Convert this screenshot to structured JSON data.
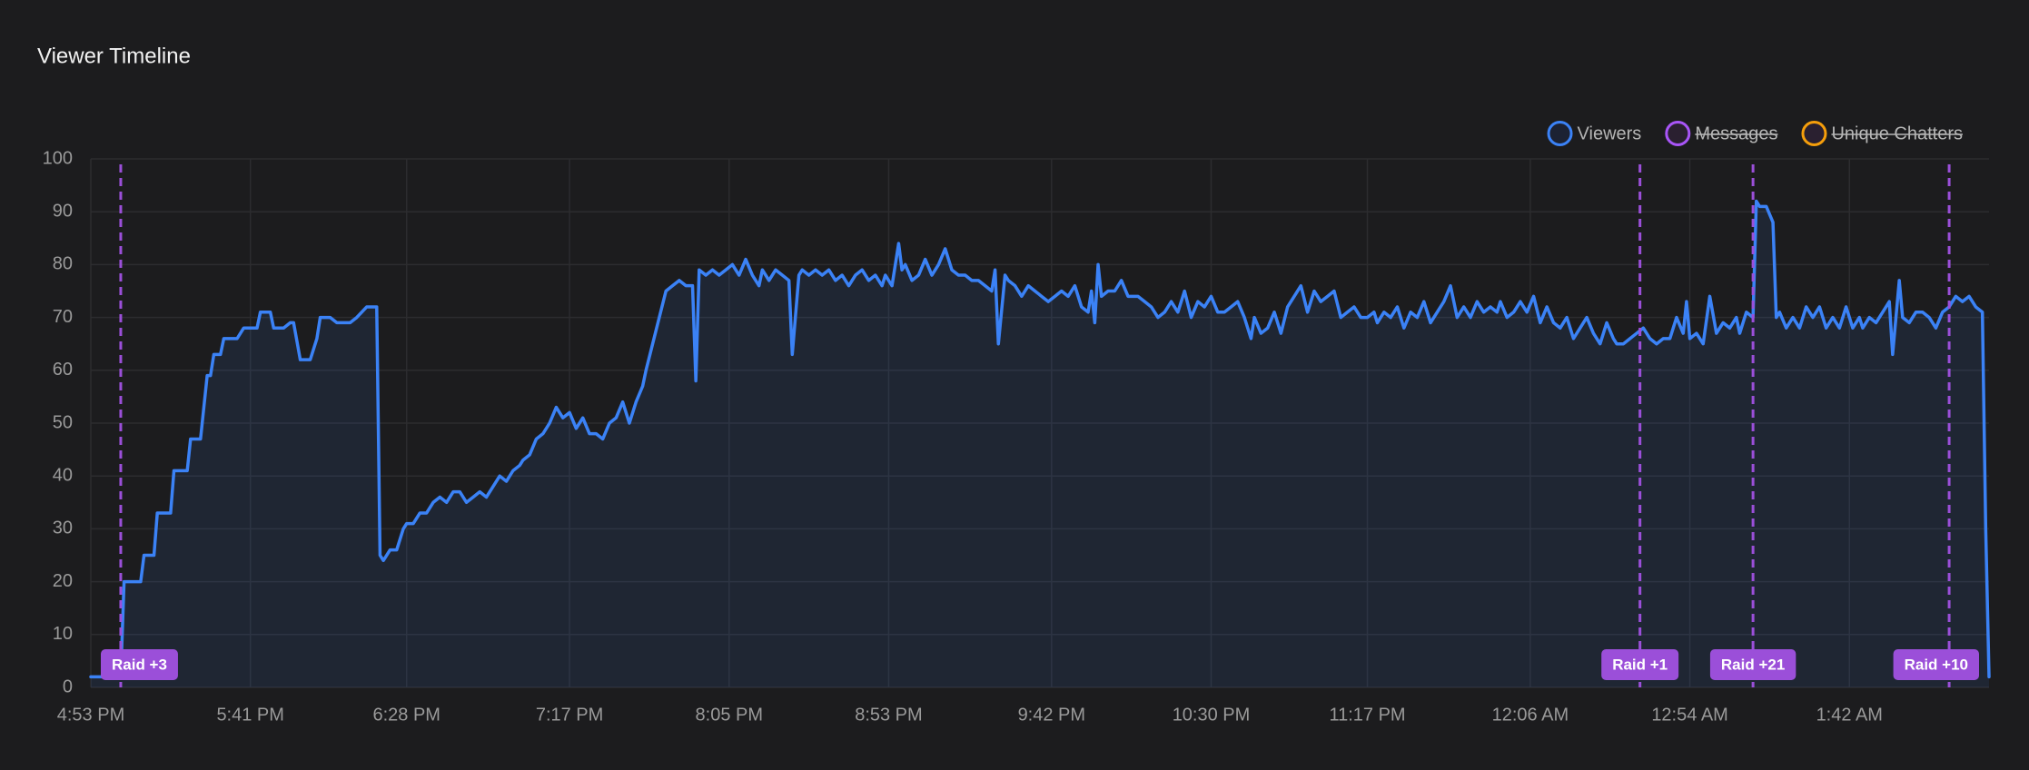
{
  "chart_data": {
    "type": "line",
    "title": "Viewer Timeline",
    "x": [
      1013,
      1016,
      1022,
      1023,
      1028,
      1029,
      1032,
      1033,
      1037,
      1038,
      1042,
      1043,
      1046,
      1048,
      1049,
      1050,
      1052,
      1053,
      1057,
      1059,
      1063,
      1064,
      1067,
      1068,
      1071,
      1073,
      1074,
      1076,
      1079,
      1081,
      1082,
      1085,
      1087,
      1091,
      1093,
      1096,
      1099,
      1100,
      1101,
      1103,
      1105,
      1107,
      1108,
      1110,
      1112,
      1114,
      1116,
      1118,
      1120,
      1122,
      1124,
      1126,
      1128,
      1130,
      1132,
      1134,
      1136,
      1138,
      1140,
      1142,
      1143,
      1145,
      1147,
      1149,
      1151,
      1153,
      1155,
      1157,
      1159,
      1161,
      1163,
      1165,
      1167,
      1169,
      1171,
      1173,
      1175,
      1177,
      1179,
      1180,
      1182,
      1184,
      1186,
      1188,
      1190,
      1192,
      1194,
      1195,
      1196,
      1198,
      1200,
      1202,
      1204,
      1206,
      1208,
      1210,
      1212,
      1214,
      1215,
      1217,
      1219,
      1221,
      1223,
      1224,
      1226,
      1227,
      1229,
      1231,
      1233,
      1235,
      1237,
      1239,
      1241,
      1243,
      1245,
      1247,
      1249,
      1251,
      1252,
      1254,
      1256,
      1257,
      1258,
      1260,
      1262,
      1264,
      1266,
      1268,
      1270,
      1272,
      1274,
      1276,
      1278,
      1280,
      1282,
      1284,
      1285,
      1286,
      1288,
      1289,
      1291,
      1293,
      1295,
      1297,
      1299,
      1301,
      1303,
      1305,
      1307,
      1309,
      1311,
      1313,
      1314,
      1315,
      1316,
      1317,
      1319,
      1321,
      1323,
      1325,
      1326,
      1328,
      1330,
      1332,
      1334,
      1336,
      1338,
      1340,
      1342,
      1344,
      1346,
      1348,
      1350,
      1352,
      1354,
      1356,
      1358,
      1360,
      1362,
      1363,
      1365,
      1367,
      1369,
      1371,
      1373,
      1375,
      1377,
      1379,
      1381,
      1383,
      1385,
      1387,
      1389,
      1391,
      1393,
      1395,
      1397,
      1399,
      1400,
      1402,
      1404,
      1406,
      1408,
      1410,
      1412,
      1414,
      1416,
      1418,
      1420,
      1422,
      1424,
      1426,
      1428,
      1430,
      1432,
      1434,
      1436,
      1437,
      1439,
      1441,
      1443,
      1445,
      1447,
      1449,
      1451,
      1453,
      1455,
      1457,
      1459,
      1461,
      1463,
      1465,
      1467,
      1469,
      1471,
      1472,
      1474,
      1476,
      1478,
      1480,
      1482,
      1484,
      1486,
      1488,
      1490,
      1492,
      1493,
      1494,
      1496,
      1498,
      1500,
      1502,
      1504,
      1506,
      1508,
      1509,
      1511,
      1513,
      1514,
      1515,
      1517,
      1519,
      1520,
      1521,
      1523,
      1525,
      1527,
      1529,
      1531,
      1533,
      1535,
      1537,
      1539,
      1541,
      1543,
      1545,
      1546,
      1548,
      1550,
      1552,
      1554,
      1555,
      1557,
      1558,
      1560,
      1562,
      1564,
      1566,
      1568,
      1570,
      1572,
      1574,
      1576,
      1578,
      1580,
      1582,
      1583,
      1584
    ],
    "series": [
      {
        "name": "Viewers",
        "color": "#3b82f6",
        "values": [
          2,
          2,
          2,
          20,
          20,
          25,
          25,
          33,
          33,
          41,
          41,
          47,
          47,
          59,
          59,
          63,
          63,
          66,
          66,
          68,
          68,
          71,
          71,
          68,
          68,
          69,
          69,
          62,
          62,
          66,
          70,
          70,
          69,
          69,
          70,
          72,
          72,
          25,
          24,
          26,
          26,
          30,
          31,
          31,
          33,
          33,
          35,
          36,
          35,
          37,
          37,
          35,
          36,
          37,
          36,
          38,
          40,
          39,
          41,
          42,
          43,
          44,
          47,
          48,
          50,
          53,
          51,
          52,
          49,
          51,
          48,
          48,
          47,
          50,
          51,
          54,
          50,
          54,
          57,
          60,
          65,
          70,
          75,
          76,
          77,
          76,
          76,
          58,
          79,
          78,
          79,
          78,
          79,
          80,
          78,
          81,
          78,
          76,
          79,
          77,
          79,
          78,
          77,
          63,
          78,
          79,
          78,
          79,
          78,
          79,
          77,
          78,
          76,
          78,
          79,
          77,
          78,
          76,
          78,
          76,
          84,
          79,
          80,
          77,
          78,
          81,
          78,
          80,
          83,
          79,
          78,
          78,
          77,
          77,
          76,
          75,
          79,
          65,
          78,
          77,
          76,
          74,
          76,
          75,
          74,
          73,
          74,
          75,
          74,
          76,
          72,
          71,
          75,
          69,
          80,
          74,
          75,
          75,
          77,
          74,
          74,
          74,
          73,
          72,
          70,
          71,
          73,
          71,
          75,
          70,
          73,
          72,
          74,
          71,
          71,
          72,
          73,
          70,
          66,
          70,
          67,
          68,
          71,
          67,
          72,
          74,
          76,
          71,
          75,
          73,
          74,
          75,
          70,
          71,
          72,
          70,
          70,
          71,
          69,
          71,
          70,
          72,
          68,
          71,
          70,
          73,
          69,
          71,
          73,
          76,
          70,
          72,
          70,
          73,
          71,
          72,
          71,
          73,
          70,
          71,
          73,
          71,
          74,
          69,
          72,
          69,
          68,
          70,
          66,
          68,
          70,
          67,
          65,
          69,
          66,
          65,
          65,
          66,
          67,
          68,
          66,
          65,
          66,
          66,
          70,
          67,
          73,
          66,
          67,
          65,
          74,
          67,
          69,
          68,
          70,
          67,
          71,
          70,
          92,
          91,
          91,
          88,
          70,
          71,
          68,
          70,
          68,
          72,
          70,
          72,
          68,
          70,
          68,
          72,
          68,
          70,
          68,
          70,
          69,
          71,
          73,
          63,
          77,
          70,
          69,
          71,
          71,
          70,
          68,
          71,
          72,
          74,
          73,
          74,
          72,
          71,
          30,
          2
        ]
      },
      {
        "name": "Messages",
        "color": "#a855f7",
        "hidden": true
      },
      {
        "name": "Unique Chatters",
        "color": "#f59e0b",
        "hidden": true
      }
    ],
    "xlim": [
      1013,
      1584
    ],
    "xticks": [
      {
        "value": 1013,
        "label": "4:53 PM"
      },
      {
        "value": 1061,
        "label": "5:41 PM"
      },
      {
        "value": 1108,
        "label": "6:28 PM"
      },
      {
        "value": 1157,
        "label": "7:17 PM"
      },
      {
        "value": 1205,
        "label": "8:05 PM"
      },
      {
        "value": 1253,
        "label": "8:53 PM"
      },
      {
        "value": 1302,
        "label": "9:42 PM"
      },
      {
        "value": 1350,
        "label": "10:30 PM"
      },
      {
        "value": 1397,
        "label": "11:17 PM"
      },
      {
        "value": 1446,
        "label": "12:06 AM"
      },
      {
        "value": 1494,
        "label": "12:54 AM"
      },
      {
        "value": 1542,
        "label": "1:42 AM"
      }
    ],
    "ylim": [
      0,
      100
    ],
    "yticks": [
      0,
      10,
      20,
      30,
      40,
      50,
      60,
      70,
      80,
      90,
      100
    ],
    "grid": true,
    "legend": "top-right",
    "annotations": [
      {
        "x": 1022,
        "label": "Raid +3",
        "color": "#9b4fd9"
      },
      {
        "x": 1479,
        "label": "Raid +1",
        "color": "#9b4fd9"
      },
      {
        "x": 1513,
        "label": "Raid +21",
        "color": "#9b4fd9"
      },
      {
        "x": 1572,
        "label": "Raid +10",
        "color": "#9b4fd9"
      }
    ]
  }
}
